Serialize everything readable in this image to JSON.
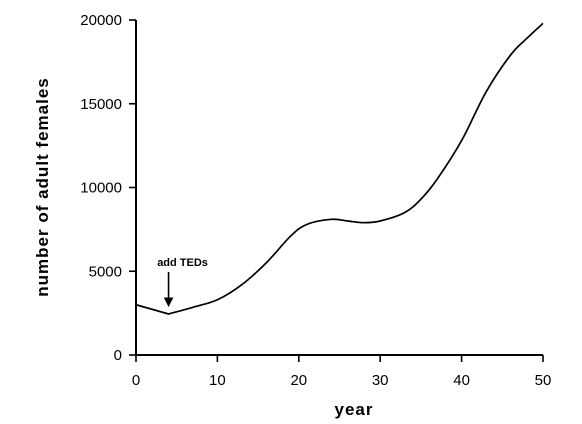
{
  "chart_data": {
    "type": "line",
    "xlabel": "year",
    "ylabel": "number of adult females",
    "xlim": [
      0,
      50
    ],
    "ylim": [
      0,
      20000
    ],
    "xticks": [
      0,
      10,
      20,
      30,
      40,
      50
    ],
    "yticks": [
      0,
      5000,
      10000,
      15000,
      20000
    ],
    "grid": false,
    "series": [
      {
        "x": [
          0,
          4,
          7,
          10,
          13,
          16,
          19,
          21,
          24,
          26,
          28,
          30,
          33,
          35,
          37,
          40,
          43,
          46,
          48,
          50
        ],
        "y": [
          3000,
          2450,
          2850,
          3300,
          4200,
          5500,
          7100,
          7800,
          8100,
          8000,
          7900,
          8000,
          8500,
          9300,
          10500,
          12800,
          15700,
          17900,
          18900,
          19800
        ]
      }
    ],
    "annotations": [
      {
        "text": "add TEDs",
        "x": 4,
        "y": 2450
      }
    ]
  }
}
